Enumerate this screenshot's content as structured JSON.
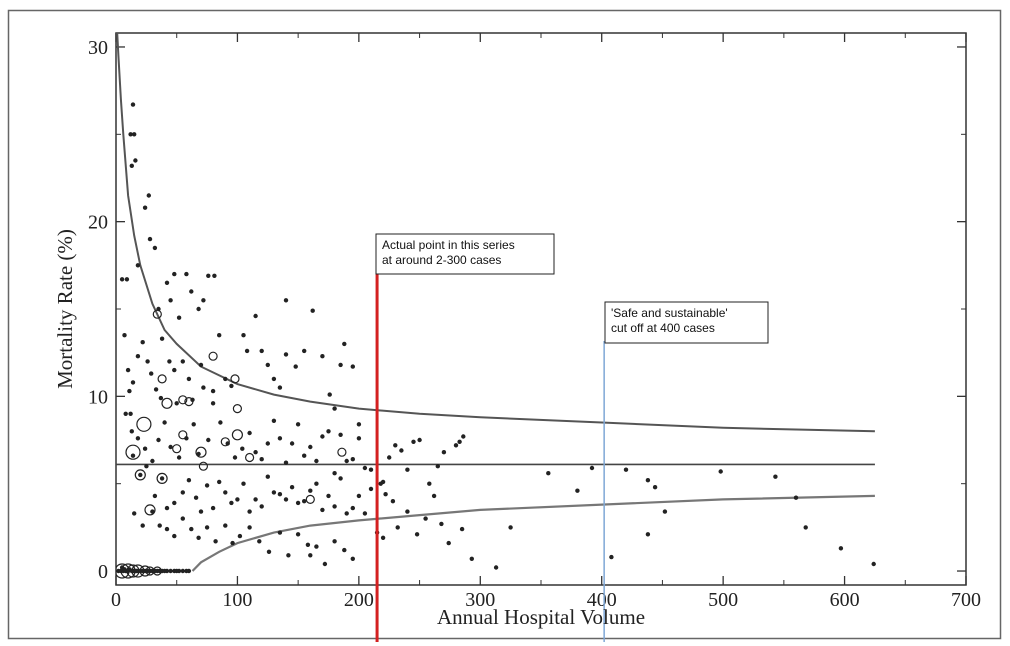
{
  "chart_data": {
    "type": "scatter",
    "xlabel": "Annual Hospital Volume",
    "ylabel": "Mortality Rate (%)",
    "xlim": [
      0,
      700
    ],
    "ylim": [
      -0.8,
      30.8
    ],
    "xticks": [
      0,
      100,
      200,
      300,
      400,
      500,
      600,
      700
    ],
    "yticks": [
      0,
      10,
      20,
      30
    ],
    "grid": false,
    "mean_line": {
      "y": 6.1,
      "x_range": [
        0,
        625
      ]
    },
    "funnel_upper": [
      [
        1,
        30.8
      ],
      [
        2,
        29.5
      ],
      [
        4,
        27
      ],
      [
        6,
        25
      ],
      [
        10,
        21.5
      ],
      [
        15,
        19.2
      ],
      [
        20,
        17.5
      ],
      [
        30,
        15.3
      ],
      [
        40,
        13.8
      ],
      [
        50,
        13
      ],
      [
        70,
        11.7
      ],
      [
        100,
        10.7
      ],
      [
        130,
        10.1
      ],
      [
        160,
        9.7
      ],
      [
        200,
        9.3
      ],
      [
        250,
        9
      ],
      [
        300,
        8.8
      ],
      [
        400,
        8.5
      ],
      [
        500,
        8.2
      ],
      [
        625,
        8
      ]
    ],
    "funnel_lower": [
      [
        63,
        0
      ],
      [
        70,
        0.5
      ],
      [
        85,
        1.1
      ],
      [
        100,
        1.6
      ],
      [
        130,
        2.2
      ],
      [
        160,
        2.6
      ],
      [
        200,
        2.9
      ],
      [
        250,
        3.2
      ],
      [
        300,
        3.5
      ],
      [
        400,
        3.8
      ],
      [
        500,
        4.1
      ],
      [
        625,
        4.3
      ]
    ],
    "annotations": [
      {
        "x": 215,
        "color": "#d42020",
        "text_lines": [
          "Actual point in this series",
          "at around 2-300 cases"
        ]
      },
      {
        "x": 402,
        "color": "#7fa7d6",
        "text_lines": [
          "'Safe and sustainable'",
          "cut off at 400 cases"
        ]
      }
    ],
    "points": [
      [
        5,
        16.7
      ],
      [
        9,
        16.7
      ],
      [
        12,
        25
      ],
      [
        14,
        26.7
      ],
      [
        15,
        25
      ],
      [
        13,
        23.2
      ],
      [
        16,
        23.5
      ],
      [
        18,
        17.5
      ],
      [
        24,
        20.8
      ],
      [
        27,
        21.5
      ],
      [
        28,
        19
      ],
      [
        32,
        18.5
      ],
      [
        35,
        15
      ],
      [
        38,
        13.3
      ],
      [
        42,
        16.5
      ],
      [
        45,
        15.5
      ],
      [
        48,
        17
      ],
      [
        52,
        14.5
      ],
      [
        58,
        17
      ],
      [
        62,
        16
      ],
      [
        72,
        15.5
      ],
      [
        76,
        16.9
      ],
      [
        81,
        16.9
      ],
      [
        68,
        15
      ],
      [
        85,
        13.5
      ],
      [
        7,
        13.5
      ],
      [
        10,
        11.5
      ],
      [
        11,
        10.3
      ],
      [
        12,
        9
      ],
      [
        14,
        10.8
      ],
      [
        18,
        12.3
      ],
      [
        22,
        13.1
      ],
      [
        26,
        12
      ],
      [
        29,
        11.3
      ],
      [
        33,
        10.4
      ],
      [
        37,
        9.9
      ],
      [
        44,
        12
      ],
      [
        48,
        11.5
      ],
      [
        55,
        12
      ],
      [
        60,
        11
      ],
      [
        63,
        9.8
      ],
      [
        70,
        11.8
      ],
      [
        72,
        10.5
      ],
      [
        80,
        10.3
      ],
      [
        90,
        11
      ],
      [
        95,
        10.6
      ],
      [
        105,
        13.5
      ],
      [
        108,
        12.6
      ],
      [
        115,
        14.6
      ],
      [
        120,
        12.6
      ],
      [
        125,
        11.8
      ],
      [
        130,
        11
      ],
      [
        135,
        10.5
      ],
      [
        140,
        12.4
      ],
      [
        148,
        11.7
      ],
      [
        155,
        12.6
      ],
      [
        162,
        14.9
      ],
      [
        140,
        15.5
      ],
      [
        170,
        12.3
      ],
      [
        176,
        10.1
      ],
      [
        180,
        9.3
      ],
      [
        185,
        11.8
      ],
      [
        188,
        13
      ],
      [
        195,
        11.7
      ],
      [
        200,
        8.4
      ],
      [
        8,
        9
      ],
      [
        13,
        8
      ],
      [
        18,
        7.6
      ],
      [
        24,
        7
      ],
      [
        30,
        6.3
      ],
      [
        35,
        7.5
      ],
      [
        40,
        8.5
      ],
      [
        45,
        7.1
      ],
      [
        50,
        9.6
      ],
      [
        52,
        6.5
      ],
      [
        58,
        7.6
      ],
      [
        64,
        8.4
      ],
      [
        68,
        6.7
      ],
      [
        76,
        7.5
      ],
      [
        80,
        9.6
      ],
      [
        86,
        8.5
      ],
      [
        92,
        7.3
      ],
      [
        98,
        6.5
      ],
      [
        104,
        7
      ],
      [
        110,
        7.9
      ],
      [
        115,
        6.8
      ],
      [
        120,
        6.4
      ],
      [
        125,
        7.3
      ],
      [
        130,
        8.6
      ],
      [
        135,
        7.6
      ],
      [
        140,
        6.2
      ],
      [
        145,
        7.3
      ],
      [
        150,
        8.4
      ],
      [
        155,
        6.6
      ],
      [
        160,
        7.1
      ],
      [
        165,
        6.3
      ],
      [
        170,
        7.7
      ],
      [
        175,
        8
      ],
      [
        180,
        5.6
      ],
      [
        185,
        7.8
      ],
      [
        190,
        6.3
      ],
      [
        195,
        6.4
      ],
      [
        200,
        7.6
      ],
      [
        205,
        5.9
      ],
      [
        210,
        5.8
      ],
      [
        220,
        5.1
      ],
      [
        225,
        6.5
      ],
      [
        230,
        7.2
      ],
      [
        235,
        6.9
      ],
      [
        240,
        5.8
      ],
      [
        245,
        7.4
      ],
      [
        250,
        7.5
      ],
      [
        258,
        5
      ],
      [
        265,
        6
      ],
      [
        270,
        6.8
      ],
      [
        280,
        7.2
      ],
      [
        286,
        7.7
      ],
      [
        283,
        7.4
      ],
      [
        14,
        6.6
      ],
      [
        20,
        5.5
      ],
      [
        25,
        6
      ],
      [
        32,
        4.3
      ],
      [
        38,
        5.3
      ],
      [
        42,
        3.6
      ],
      [
        48,
        3.9
      ],
      [
        55,
        4.5
      ],
      [
        60,
        5.2
      ],
      [
        66,
        4.2
      ],
      [
        70,
        3.4
      ],
      [
        75,
        4.9
      ],
      [
        80,
        3.6
      ],
      [
        85,
        5.1
      ],
      [
        90,
        4.5
      ],
      [
        95,
        3.9
      ],
      [
        100,
        4.1
      ],
      [
        105,
        5
      ],
      [
        110,
        3.4
      ],
      [
        115,
        4.1
      ],
      [
        120,
        3.7
      ],
      [
        125,
        5.4
      ],
      [
        130,
        4.5
      ],
      [
        135,
        4.4
      ],
      [
        140,
        4.1
      ],
      [
        145,
        4.8
      ],
      [
        150,
        3.9
      ],
      [
        155,
        4
      ],
      [
        160,
        4.6
      ],
      [
        165,
        5
      ],
      [
        170,
        3.5
      ],
      [
        175,
        4.3
      ],
      [
        180,
        3.7
      ],
      [
        185,
        5.3
      ],
      [
        190,
        3.3
      ],
      [
        195,
        3.6
      ],
      [
        200,
        4.3
      ],
      [
        205,
        3.3
      ],
      [
        210,
        4.7
      ],
      [
        218,
        5
      ],
      [
        222,
        4.4
      ],
      [
        228,
        4
      ],
      [
        232,
        2.5
      ],
      [
        240,
        3.4
      ],
      [
        248,
        2.1
      ],
      [
        255,
        3
      ],
      [
        262,
        4.3
      ],
      [
        268,
        2.7
      ],
      [
        274,
        1.6
      ],
      [
        285,
        2.4
      ],
      [
        293,
        0.7
      ],
      [
        313,
        0.2
      ],
      [
        325,
        2.5
      ],
      [
        356,
        5.6
      ],
      [
        380,
        4.6
      ],
      [
        392,
        5.9
      ],
      [
        408,
        0.8
      ],
      [
        420,
        5.8
      ],
      [
        438,
        5.2
      ],
      [
        444,
        4.8
      ],
      [
        452,
        3.4
      ],
      [
        438,
        2.1
      ],
      [
        498,
        5.7
      ],
      [
        543,
        5.4
      ],
      [
        560,
        4.2
      ],
      [
        568,
        2.5
      ],
      [
        597,
        1.3
      ],
      [
        624,
        0.4
      ],
      [
        15,
        3.3
      ],
      [
        22,
        2.6
      ],
      [
        30,
        3.4
      ],
      [
        36,
        2.6
      ],
      [
        42,
        2.4
      ],
      [
        48,
        2
      ],
      [
        55,
        3
      ],
      [
        62,
        2.4
      ],
      [
        68,
        1.9
      ],
      [
        75,
        2.5
      ],
      [
        82,
        1.7
      ],
      [
        90,
        2.6
      ],
      [
        96,
        1.6
      ],
      [
        102,
        2
      ],
      [
        110,
        2.5
      ],
      [
        118,
        1.7
      ],
      [
        126,
        1.1
      ],
      [
        135,
        2.2
      ],
      [
        142,
        0.9
      ],
      [
        150,
        2.1
      ],
      [
        158,
        1.5
      ],
      [
        165,
        1.4
      ],
      [
        172,
        0.4
      ],
      [
        180,
        1.7
      ],
      [
        188,
        1.2
      ],
      [
        195,
        0.7
      ],
      [
        215,
        2.2
      ],
      [
        220,
        1.9
      ],
      [
        160,
        0.9
      ],
      [
        2,
        0
      ],
      [
        4,
        0
      ],
      [
        5,
        0.2
      ],
      [
        6,
        0
      ],
      [
        7,
        0.1
      ],
      [
        8,
        0
      ],
      [
        9,
        0
      ],
      [
        10,
        0
      ],
      [
        11,
        0.1
      ],
      [
        13,
        0
      ],
      [
        14,
        0
      ],
      [
        15,
        0
      ],
      [
        16,
        0
      ],
      [
        17,
        0
      ],
      [
        18,
        0
      ],
      [
        20,
        0
      ],
      [
        22,
        0
      ],
      [
        24,
        0
      ],
      [
        26,
        0
      ],
      [
        28,
        0
      ],
      [
        30,
        0
      ],
      [
        32,
        0
      ],
      [
        34,
        0
      ],
      [
        36,
        0
      ],
      [
        38,
        0
      ],
      [
        40,
        0
      ],
      [
        42,
        0
      ],
      [
        45,
        0
      ],
      [
        48,
        0
      ],
      [
        50,
        0
      ],
      [
        52,
        0
      ],
      [
        55,
        0
      ],
      [
        58,
        0
      ],
      [
        60,
        0
      ]
    ],
    "open_circles": [
      [
        14,
        6.8,
        7
      ],
      [
        23,
        8.4,
        7
      ],
      [
        20,
        5.5,
        5
      ],
      [
        28,
        3.5,
        5
      ],
      [
        38,
        5.3,
        5
      ],
      [
        34,
        14.7,
        4
      ],
      [
        38,
        11,
        4
      ],
      [
        42,
        9.6,
        5
      ],
      [
        50,
        7,
        4
      ],
      [
        55,
        9.8,
        4
      ],
      [
        60,
        9.7,
        4
      ],
      [
        70,
        6.8,
        5
      ],
      [
        72,
        6,
        4
      ],
      [
        55,
        7.8,
        4
      ],
      [
        100,
        7.8,
        5
      ],
      [
        98,
        11,
        4
      ],
      [
        100,
        9.3,
        4
      ],
      [
        80,
        12.3,
        4
      ],
      [
        160,
        4.1,
        4
      ],
      [
        186,
        6.8,
        4
      ],
      [
        110,
        6.5,
        4
      ],
      [
        90,
        7.4,
        4
      ],
      [
        5,
        0,
        7
      ],
      [
        10,
        0,
        7
      ],
      [
        14,
        0,
        6
      ],
      [
        18,
        0,
        6
      ],
      [
        24,
        0,
        5
      ],
      [
        28,
        0,
        4
      ],
      [
        34,
        0,
        4
      ]
    ]
  }
}
